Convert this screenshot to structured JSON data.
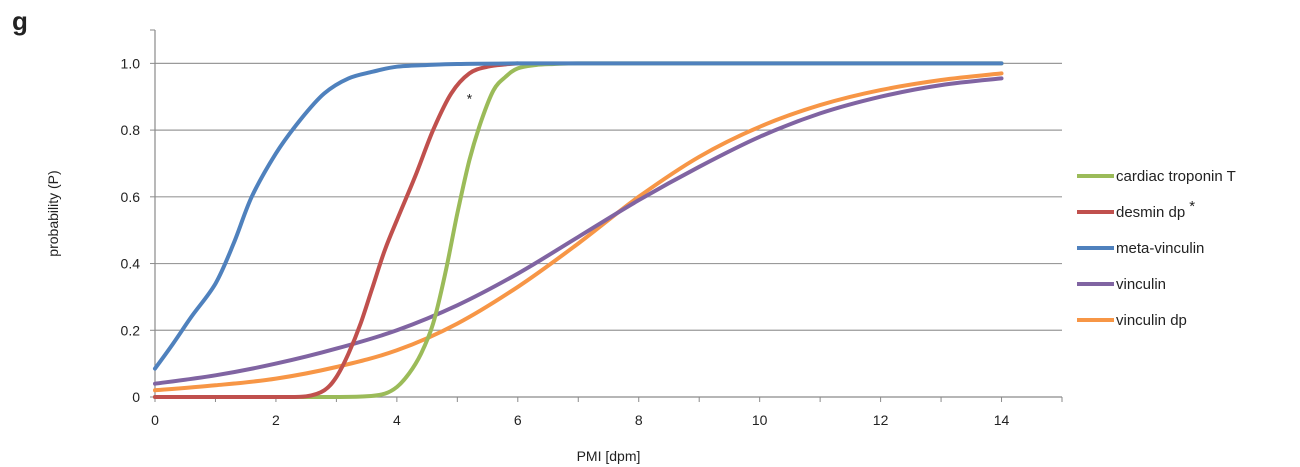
{
  "panel_label": "g",
  "chart_data": {
    "type": "line",
    "title": "",
    "xlabel": "PMI [dpm]",
    "ylabel": "probability (P)",
    "xlim": [
      0,
      15
    ],
    "ylim": [
      0,
      1.1
    ],
    "xticks": [
      0,
      2,
      4,
      6,
      8,
      10,
      12,
      14
    ],
    "yticks": [
      0,
      0.2,
      0.4,
      0.6,
      0.8,
      1.0
    ],
    "ytick_labels": [
      "0",
      "0.2",
      "0.4",
      "0.6",
      "0.8",
      "1.0"
    ],
    "grid": "horizontal",
    "legend_position": "right",
    "annotation": "*",
    "series": [
      {
        "name": "cardiac troponin T",
        "color": "#9bbb59",
        "x": [
          0,
          1,
          2,
          3,
          3.5,
          3.8,
          4.0,
          4.2,
          4.4,
          4.6,
          4.8,
          5.0,
          5.2,
          5.4,
          5.6,
          5.8,
          6.0,
          6.3,
          6.6,
          7.0,
          8,
          10,
          12,
          14
        ],
        "y": [
          0,
          0,
          0,
          0,
          0.002,
          0.01,
          0.03,
          0.07,
          0.13,
          0.22,
          0.37,
          0.55,
          0.71,
          0.83,
          0.92,
          0.96,
          0.985,
          0.995,
          0.998,
          1.0,
          1.0,
          1.0,
          1.0,
          1.0
        ]
      },
      {
        "name": "desmin dp",
        "color": "#c0504d",
        "x": [
          0,
          1,
          2,
          2.5,
          2.8,
          3.0,
          3.2,
          3.4,
          3.6,
          3.8,
          4.0,
          4.3,
          4.6,
          4.9,
          5.2,
          5.5,
          5.8,
          6.0
        ],
        "y": [
          0,
          0,
          0,
          0.002,
          0.02,
          0.06,
          0.13,
          0.22,
          0.33,
          0.44,
          0.53,
          0.66,
          0.8,
          0.91,
          0.97,
          0.99,
          0.997,
          1.0
        ]
      },
      {
        "name": "meta-vinculin",
        "color": "#4f81bd",
        "x": [
          0,
          0.3,
          0.6,
          1.0,
          1.3,
          1.6,
          2.0,
          2.4,
          2.8,
          3.2,
          3.6,
          4.0,
          4.5,
          5.0,
          6.0,
          8.0,
          10,
          12,
          14
        ],
        "y": [
          0.085,
          0.16,
          0.24,
          0.34,
          0.46,
          0.6,
          0.73,
          0.83,
          0.91,
          0.955,
          0.975,
          0.99,
          0.995,
          0.998,
          1.0,
          1.0,
          1.0,
          1.0,
          1.0
        ]
      },
      {
        "name": "vinculin",
        "color": "#8064a2",
        "x": [
          0,
          1,
          2,
          3,
          4,
          5,
          6,
          7,
          8,
          9,
          10,
          11,
          12,
          13,
          14
        ],
        "y": [
          0.04,
          0.065,
          0.1,
          0.145,
          0.2,
          0.275,
          0.37,
          0.48,
          0.59,
          0.69,
          0.78,
          0.85,
          0.9,
          0.935,
          0.955
        ]
      },
      {
        "name": "vinculin dp",
        "color": "#f79646",
        "x": [
          0,
          1,
          2,
          3,
          4,
          5,
          6,
          7,
          8,
          9,
          10,
          11,
          12,
          13,
          14
        ],
        "y": [
          0.02,
          0.035,
          0.055,
          0.09,
          0.14,
          0.22,
          0.33,
          0.46,
          0.6,
          0.72,
          0.81,
          0.875,
          0.92,
          0.95,
          0.97
        ]
      }
    ],
    "legend": [
      {
        "label": "cardiac troponin T",
        "color": "#9bbb59"
      },
      {
        "label": "desmin dp",
        "color": "#c0504d",
        "marker": "*"
      },
      {
        "label": "meta-vinculin",
        "color": "#4f81bd"
      },
      {
        "label": "vinculin",
        "color": "#8064a2"
      },
      {
        "label": "vinculin dp",
        "color": "#f79646"
      }
    ]
  }
}
